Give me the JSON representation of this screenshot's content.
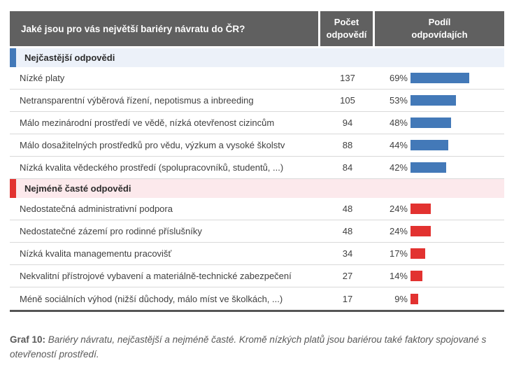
{
  "table": {
    "header": {
      "question": "Jaké jsou pro vás největší bariéry návratu do ČR?",
      "count_label": "Počet\nodpovědí",
      "share_label": "Podíl\nodpovídajích"
    },
    "sections": [
      {
        "id": "most-common",
        "title": "Nejčastější odpovědi",
        "accent": "#4379b8",
        "background": "#ecf1f9",
        "rows": [
          {
            "label": "Nízké platy",
            "count": "137",
            "pct": "69%",
            "value": 69
          },
          {
            "label": "Netransparentní výběrová řízení, nepotismus a inbreeding",
            "count": "105",
            "pct": "53%",
            "value": 53
          },
          {
            "label": "Málo mezinárodní prostředí ve vědě, nízká otevřenost cizincům",
            "count": "94",
            "pct": "48%",
            "value": 48
          },
          {
            "label": "Málo dosažitelných prostředků pro vědu, výzkum a vysoké školstv",
            "count": "88",
            "pct": "44%",
            "value": 44
          },
          {
            "label": "Nízká kvalita vědeckého prostředí (spolupracovníků, studentů, ...)",
            "count": "84",
            "pct": "42%",
            "value": 42
          }
        ]
      },
      {
        "id": "least-common",
        "title": "Nejméně časté odpovědi",
        "accent": "#e23230",
        "background": "#fce9ec",
        "rows": [
          {
            "label": "Nedostatečná administrativní podpora",
            "count": "48",
            "pct": "24%",
            "value": 24
          },
          {
            "label": "Nedostatečné zázemí pro rodinné příslušníky",
            "count": "48",
            "pct": "24%",
            "value": 24
          },
          {
            "label": "Nízká kvalita managementu pracovišť",
            "count": "34",
            "pct": "17%",
            "value": 17
          },
          {
            "label": "Nekvalitní přístrojové vybavení a materiálně-technické zabezpečení",
            "count": "27",
            "pct": "14%",
            "value": 14
          },
          {
            "label": "Méně sociálních výhod (nižší důchody, málo míst ve školkách, ...)",
            "count": "17",
            "pct": "9%",
            "value": 9
          }
        ]
      }
    ]
  },
  "caption": {
    "prefix": "Graf 10:",
    "text": " Bariéry návratu, nejčastější a nejméně časté. Kromě nízkých platů jsou bariérou také faktory spojované s otevřeností prostředí."
  },
  "chart_data": {
    "type": "bar",
    "orientation": "horizontal",
    "title": "Jaké jsou pro vás největší bariéry návratu do ČR?",
    "value_unit": "%",
    "xlim": [
      0,
      100
    ],
    "grid": false,
    "legend_position": "none",
    "series": [
      {
        "name": "Nejčastější odpovědi",
        "color": "#4379b8",
        "categories": [
          "Nízké platy",
          "Netransparentní výběrová řízení, nepotismus a inbreeding",
          "Málo mezinárodní prostředí ve vědě, nízká otevřenost cizincům",
          "Málo dosažitelných prostředků pro vědu, výzkum a vysoké školstv",
          "Nízká kvalita vědeckého prostředí (spolupracovníků, studentů, ...)"
        ],
        "counts": [
          137,
          105,
          94,
          88,
          84
        ],
        "values": [
          69,
          53,
          48,
          44,
          42
        ]
      },
      {
        "name": "Nejméně časté odpovědi",
        "color": "#e23230",
        "categories": [
          "Nedostatečná administrativní podpora",
          "Nedostatečné zázemí pro rodinné příslušníky",
          "Nízká kvalita managementu pracovišť",
          "Nekvalitní přístrojové vybavení a materiálně-technické zabezpečení",
          "Méně sociálních výhod (nižší důchody, málo míst ve školkách, ...)"
        ],
        "counts": [
          48,
          48,
          34,
          27,
          17
        ],
        "values": [
          24,
          24,
          17,
          14,
          9
        ]
      }
    ]
  }
}
